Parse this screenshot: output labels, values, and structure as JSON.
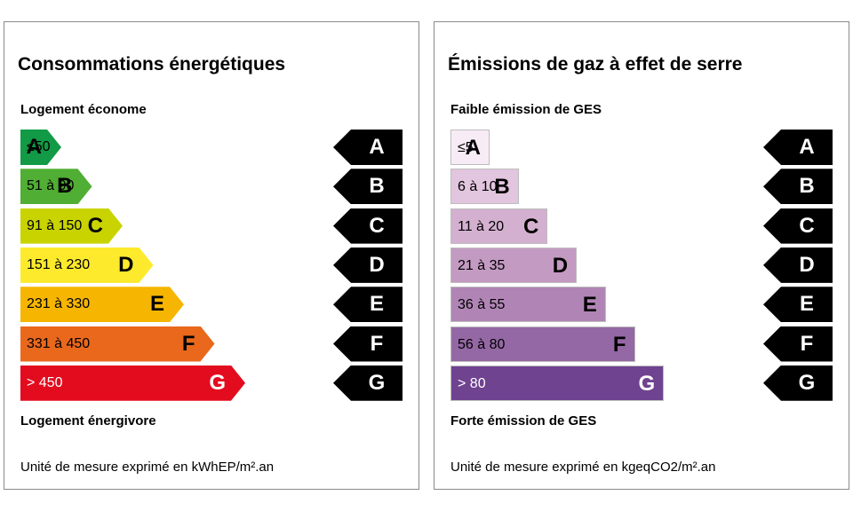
{
  "energy": {
    "title": "Consommations énergétiques",
    "top_label": "Logement économe",
    "bottom_label": "Logement énergivore",
    "unit": "Unité de mesure exprimé en kWhEP/m².an",
    "bars": [
      {
        "range": "≤50",
        "letter": "A",
        "color": "#129a46",
        "level": 1
      },
      {
        "range": "51 à 90",
        "letter": "B",
        "color": "#50ae34",
        "level": 2
      },
      {
        "range": "91 à 150",
        "letter": "C",
        "color": "#c8d300",
        "level": 3
      },
      {
        "range": "151 à 230",
        "letter": "D",
        "color": "#fdea2c",
        "level": 4
      },
      {
        "range": "231 à 330",
        "letter": "E",
        "color": "#f6b500",
        "level": 5
      },
      {
        "range": "331 à 450",
        "letter": "F",
        "color": "#e9681c",
        "level": 6
      },
      {
        "range": "> 450",
        "letter": "G",
        "color": "#e30c1f",
        "level": 7
      }
    ],
    "arrows": [
      "A",
      "B",
      "C",
      "D",
      "E",
      "F",
      "G"
    ]
  },
  "ges": {
    "title": "Émissions de gaz à effet de serre",
    "top_label": "Faible émission de GES",
    "bottom_label": "Forte émission de GES",
    "unit": "Unité de mesure exprimé en kgeqCO2/m².an",
    "bars": [
      {
        "range": "≤5",
        "letter": "A",
        "color": "#f7ecf5",
        "level": 1
      },
      {
        "range": "6 à 10",
        "letter": "B",
        "color": "#e2c5de",
        "level": 2
      },
      {
        "range": "11 à 20",
        "letter": "C",
        "color": "#d4b0d0",
        "level": 3
      },
      {
        "range": "21 à 35",
        "letter": "D",
        "color": "#c39ac2",
        "level": 4
      },
      {
        "range": "36 à 55",
        "letter": "E",
        "color": "#b085b5",
        "level": 5
      },
      {
        "range": "56 à 80",
        "letter": "F",
        "color": "#9468a4",
        "level": 6
      },
      {
        "range": "> 80",
        "letter": "G",
        "color": "#6f4390",
        "level": 7
      }
    ],
    "arrows": [
      "A",
      "B",
      "C",
      "D",
      "E",
      "F",
      "G"
    ]
  }
}
